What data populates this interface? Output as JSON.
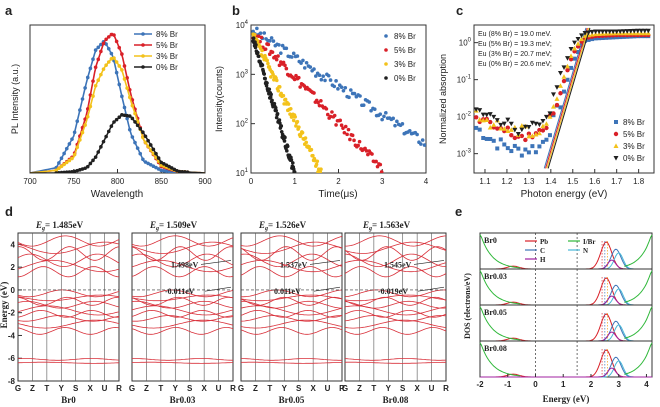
{
  "figure": {
    "colors": {
      "c8": "#3d74b8",
      "c5": "#d92028",
      "c3": "#f3c21b",
      "c0": "#202020"
    },
    "panels": {
      "a": {
        "label": "a",
        "xlabel": "Wavelength",
        "ylabel": "PL Intensity (a.u.)",
        "xticks": [
          "700",
          "750",
          "800",
          "850",
          "900"
        ],
        "legend": [
          "8% Br",
          "5% Br",
          "3% Br",
          "0% Br"
        ]
      },
      "b": {
        "label": "b",
        "xlabel": "Time(μs)",
        "ylabel": "Intensity(counts)",
        "xticks": [
          "0",
          "1",
          "2",
          "3",
          "4"
        ],
        "ytick_bases": [
          "10",
          "10",
          "10",
          "10"
        ],
        "ytick_exps": [
          "1",
          "2",
          "3",
          "4"
        ],
        "legend": [
          "8% Br",
          "5% Br",
          "3% Br",
          "0% Br"
        ]
      },
      "c": {
        "label": "c",
        "xlabel": "Photon energy (eV)",
        "ylabel": "Normalized absorption",
        "xticks": [
          "1.1",
          "1.2",
          "1.3",
          "1.4",
          "1.5",
          "1.6",
          "1.7",
          "1.8"
        ],
        "ytick_bases": [
          "10",
          "10",
          "10",
          "10"
        ],
        "ytick_exps": [
          "-3",
          "-2",
          "-1",
          "0"
        ],
        "annotations": [
          "Eu (8% Br) = 19.0 meV.",
          "Eu (5% Br) = 19.3 meV;",
          "Eu (3% Br) = 20.7 meV;",
          "Eu (0% Br) = 20.6 meV;"
        ],
        "legend": [
          "8% Br",
          "5% Br",
          "3% Br",
          "0% Br"
        ]
      },
      "d": {
        "label": "d",
        "ylabel": "Energy (eV)",
        "yticks": [
          "4",
          "2",
          "0",
          "-2",
          "-4",
          "-6",
          "-8"
        ],
        "kpoints": [
          "G",
          "Z",
          "T",
          "Y",
          "S",
          "X",
          "U",
          "R"
        ],
        "subpanels": [
          {
            "name": "Br0",
            "gap_label": "E",
            "gap_sub": "g",
            "gap_value": "= 1.485eV",
            "note1": "",
            "note2": ""
          },
          {
            "name": "Br0.03",
            "gap_label": "E",
            "gap_sub": "g",
            "gap_value": "= 1.509eV",
            "note1": "1.498eV",
            "note2": "-0.011eV"
          },
          {
            "name": "Br0.05",
            "gap_label": "E",
            "gap_sub": "g",
            "gap_value": "= 1.526eV",
            "note1": "1.537eV",
            "note2": "0.011eV"
          },
          {
            "name": "Br0.08",
            "gap_label": "E",
            "gap_sub": "g",
            "gap_value": "= 1.563eV",
            "note1": "1.545eV",
            "note2": "-0.019eV"
          }
        ]
      },
      "e": {
        "label": "e",
        "xlabel": "Energy (eV)",
        "ylabel": "DOS (electrons/eV)",
        "xticks": [
          "-2",
          "-1",
          "0",
          "1",
          "2",
          "3",
          "4"
        ],
        "rows": [
          "Br0",
          "Br0.03",
          "Br0.05",
          "Br0.08"
        ],
        "legend": [
          {
            "name": "Pb",
            "color": "#d92028"
          },
          {
            "name": "C",
            "color": "#3d74b8"
          },
          {
            "name": "H",
            "color": "#a020a0"
          },
          {
            "name": "I/Br",
            "color": "#2fb83a"
          },
          {
            "name": "N",
            "color": "#49b8d8"
          }
        ]
      }
    }
  },
  "chart_data": [
    {
      "type": "line",
      "panel": "a",
      "xlabel": "Wavelength",
      "ylabel": "PL Intensity (a.u.)",
      "xlim": [
        700,
        900
      ],
      "x": [
        700,
        730,
        750,
        765,
        775,
        785,
        795,
        805,
        815,
        830,
        850,
        870,
        900
      ],
      "series": [
        {
          "name": "8% Br",
          "values": [
            0.0,
            0.04,
            0.28,
            0.7,
            0.93,
            1.0,
            0.88,
            0.58,
            0.3,
            0.09,
            0.02,
            0.0,
            0.0
          ]
        },
        {
          "name": "5% Br",
          "values": [
            0.0,
            0.02,
            0.13,
            0.45,
            0.8,
            1.0,
            1.06,
            0.9,
            0.6,
            0.25,
            0.05,
            0.01,
            0.0
          ]
        },
        {
          "name": "3% Br",
          "values": [
            0.0,
            0.02,
            0.12,
            0.4,
            0.66,
            0.8,
            0.88,
            0.78,
            0.55,
            0.25,
            0.06,
            0.01,
            0.0
          ]
        },
        {
          "name": "0% Br",
          "values": [
            0.0,
            0.0,
            0.01,
            0.04,
            0.12,
            0.25,
            0.38,
            0.44,
            0.43,
            0.3,
            0.08,
            0.01,
            0.0
          ]
        }
      ]
    },
    {
      "type": "scatter",
      "panel": "b",
      "xlabel": "Time(μs)",
      "ylabel": "Intensity(counts)",
      "xlim": [
        0,
        4
      ],
      "yscale": "log",
      "ylim": [
        10,
        10000
      ],
      "series": [
        {
          "name": "8% Br",
          "peak": 8000,
          "peak_time": 0.05,
          "tail_time": 4.0,
          "tail": 40
        },
        {
          "name": "5% Br",
          "peak": 7000,
          "peak_time": 0.05,
          "tail_time": 3.0,
          "tail": 12
        },
        {
          "name": "3% Br",
          "peak": 6000,
          "peak_time": 0.05,
          "tail_time": 1.6,
          "tail": 10
        },
        {
          "name": "0% Br",
          "peak": 5000,
          "peak_time": 0.05,
          "tail_time": 1.0,
          "tail": 10
        }
      ]
    },
    {
      "type": "scatter",
      "panel": "c",
      "xlabel": "Photon energy (eV)",
      "ylabel": "Normalized absorption",
      "xlim": [
        1.05,
        1.87
      ],
      "yscale": "log",
      "ylim": [
        0.0003,
        3
      ],
      "x": [
        1.06,
        1.15,
        1.25,
        1.35,
        1.4,
        1.45,
        1.5,
        1.55,
        1.6,
        1.7,
        1.8,
        1.86
      ],
      "series": [
        {
          "name": "8% Br",
          "values": [
            0.005,
            0.002,
            0.0012,
            0.0015,
            0.005,
            0.03,
            0.3,
            1.1,
            1.3,
            1.4,
            1.5,
            1.5
          ]
        },
        {
          "name": "5% Br",
          "values": [
            0.008,
            0.005,
            0.003,
            0.003,
            0.01,
            0.06,
            0.5,
            1.3,
            1.5,
            1.6,
            1.6,
            1.6
          ]
        },
        {
          "name": "3% Br",
          "values": [
            0.01,
            0.006,
            0.004,
            0.004,
            0.012,
            0.08,
            0.6,
            1.5,
            1.7,
            1.8,
            1.8,
            1.8
          ]
        },
        {
          "name": "0% Br",
          "values": [
            0.02,
            0.01,
            0.005,
            0.005,
            0.02,
            0.15,
            0.9,
            1.8,
            2.0,
            2.0,
            2.1,
            2.1
          ]
        }
      ]
    }
  ]
}
